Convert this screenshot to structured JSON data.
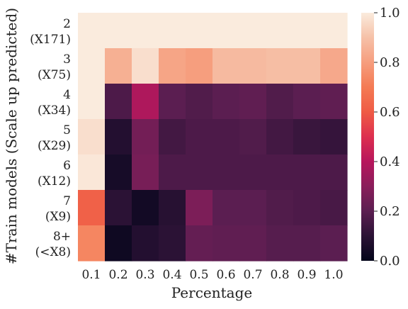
{
  "chart_data": {
    "type": "heatmap",
    "xlabel": "Percentage",
    "ylabel": "#Train models (Scale up predicted)",
    "x_categories": [
      "0.1",
      "0.2",
      "0.3",
      "0.4",
      "0.5",
      "0.6",
      "0.7",
      "0.8",
      "0.9",
      "1.0"
    ],
    "y_categories": [
      [
        "2",
        "(X171)"
      ],
      [
        "3",
        "(X75)"
      ],
      [
        "4",
        "(X34)"
      ],
      [
        "5",
        "(X29)"
      ],
      [
        "6",
        "(X12)"
      ],
      [
        "7",
        "(X9)"
      ],
      [
        "8+",
        "(<X8)"
      ]
    ],
    "values": [
      [
        1.0,
        1.0,
        1.0,
        1.0,
        1.0,
        1.0,
        1.0,
        1.0,
        1.0,
        1.0
      ],
      [
        1.0,
        0.85,
        0.97,
        0.82,
        0.8,
        0.88,
        0.88,
        0.89,
        0.89,
        0.83
      ],
      [
        1.0,
        0.17,
        0.38,
        0.2,
        0.18,
        0.2,
        0.21,
        0.18,
        0.2,
        0.21
      ],
      [
        0.97,
        0.08,
        0.25,
        0.15,
        0.17,
        0.17,
        0.18,
        0.15,
        0.13,
        0.12
      ],
      [
        0.99,
        0.05,
        0.26,
        0.17,
        0.17,
        0.17,
        0.17,
        0.17,
        0.17,
        0.17
      ],
      [
        0.62,
        0.1,
        0.04,
        0.09,
        0.27,
        0.2,
        0.2,
        0.18,
        0.17,
        0.16
      ],
      [
        0.73,
        0.03,
        0.08,
        0.1,
        0.22,
        0.21,
        0.21,
        0.19,
        0.19,
        0.2
      ]
    ],
    "colorbar": {
      "range": [
        0.0,
        1.0
      ],
      "ticks": [
        "0.0",
        "0.2",
        "0.4",
        "0.6",
        "0.8",
        "1.0"
      ],
      "colormap": "rocket",
      "colors": [
        "#03051a",
        "#2b1235",
        "#5b1e51",
        "#8a1e5b",
        "#b7165c",
        "#dd2f4f",
        "#ef5b45",
        "#f47b54",
        "#f69e7e",
        "#f6c1a8",
        "#faebdd"
      ]
    },
    "grid": false
  }
}
